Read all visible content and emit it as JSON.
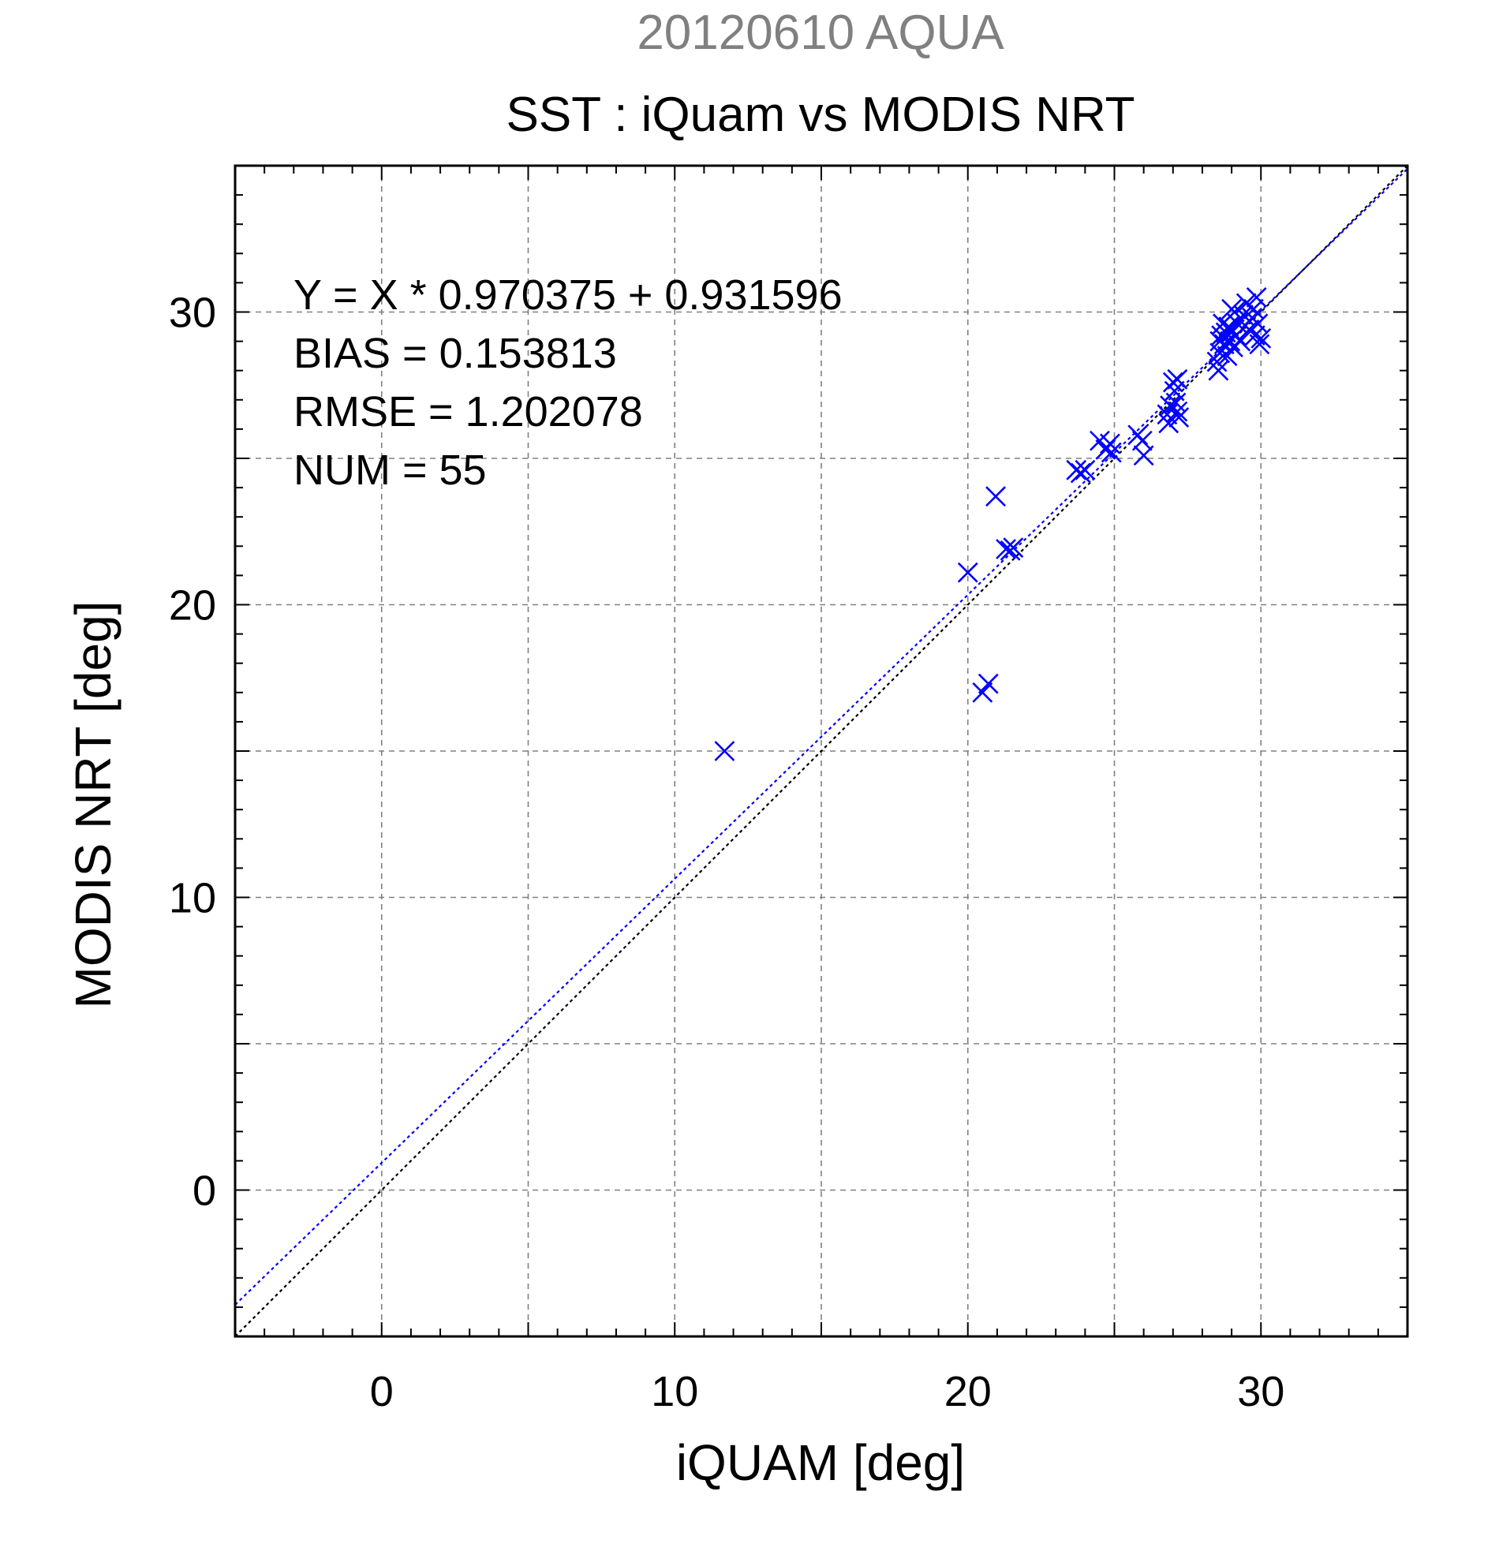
{
  "chart_data": {
    "type": "scatter",
    "title": "SST : iQuam vs MODIS NRT",
    "subtitle": "20120610 AQUA",
    "xlabel": "iQUAM [deg]",
    "ylabel": "MODIS NRT [deg]",
    "xlim": [
      -5,
      35
    ],
    "ylim": [
      -5,
      35
    ],
    "x_major_ticks": [
      0,
      10,
      20,
      30
    ],
    "y_major_ticks": [
      0,
      10,
      20,
      30
    ],
    "x_tick_labels": [
      "0",
      "10",
      "20",
      "30"
    ],
    "y_tick_labels": [
      "0",
      "10",
      "20",
      "30"
    ],
    "grid": true,
    "grid_step": 5,
    "minor_tick_step": 1,
    "marker": "x",
    "colors": {
      "points": "#0000ff",
      "fit_line": "#0000ff",
      "identity_line": "#000000",
      "grid": "#808080",
      "subtitle": "#808080",
      "text": "#000000"
    },
    "annotations": [
      "Y = X * 0.970375 + 0.931596",
      "BIAS = 0.153813",
      "RMSE = 1.202078",
      "NUM = 55"
    ],
    "fit": {
      "slope": 0.970375,
      "intercept": 0.931596
    },
    "series": [
      {
        "points": [
          [
            11.7,
            15.0
          ],
          [
            20.0,
            21.1
          ],
          [
            20.5,
            17.0
          ],
          [
            20.7,
            17.3
          ],
          [
            20.95,
            23.7
          ],
          [
            21.3,
            21.9
          ],
          [
            21.45,
            21.85
          ],
          [
            21.55,
            21.95
          ],
          [
            23.7,
            24.6
          ],
          [
            23.85,
            24.5
          ],
          [
            24.0,
            24.6
          ],
          [
            24.5,
            25.6
          ],
          [
            24.7,
            25.3
          ],
          [
            24.85,
            25.5
          ],
          [
            24.9,
            25.2
          ],
          [
            25.8,
            25.8
          ],
          [
            25.95,
            25.6
          ],
          [
            26.0,
            25.1
          ],
          [
            26.8,
            26.5
          ],
          [
            26.85,
            26.2
          ],
          [
            26.9,
            26.8
          ],
          [
            27.0,
            27.6
          ],
          [
            27.05,
            27.3
          ],
          [
            27.1,
            26.9
          ],
          [
            27.15,
            26.6
          ],
          [
            27.15,
            27.7
          ],
          [
            28.5,
            28.3
          ],
          [
            28.55,
            28.0
          ],
          [
            28.6,
            28.6
          ],
          [
            28.65,
            29.2
          ],
          [
            28.7,
            29.6
          ],
          [
            28.75,
            28.9
          ],
          [
            28.8,
            29.3
          ],
          [
            28.85,
            28.5
          ],
          [
            28.9,
            29.5
          ],
          [
            28.95,
            29.0
          ],
          [
            29.0,
            29.3
          ],
          [
            29.05,
            28.8
          ],
          [
            29.1,
            30.0
          ],
          [
            29.15,
            29.2
          ],
          [
            29.2,
            29.6
          ],
          [
            29.3,
            29.0
          ],
          [
            29.4,
            29.9
          ],
          [
            29.5,
            30.3
          ],
          [
            29.6,
            29.4
          ],
          [
            29.7,
            29.8
          ],
          [
            29.8,
            29.2
          ],
          [
            29.85,
            30.5
          ],
          [
            29.9,
            29.6
          ],
          [
            29.95,
            28.9
          ],
          [
            30.0,
            29.1
          ],
          [
            29.0,
            30.1
          ],
          [
            28.6,
            29.0
          ],
          [
            27.2,
            26.4
          ],
          [
            29.75,
            30.1
          ]
        ]
      }
    ]
  }
}
